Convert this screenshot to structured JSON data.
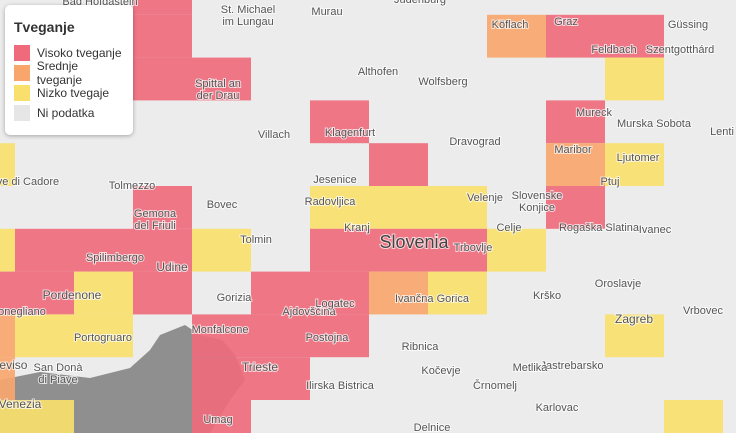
{
  "legend": {
    "title": "Tveganje",
    "items": [
      {
        "label": "Visoko tveganje",
        "color": "#ef6b7c"
      },
      {
        "label": "Srednje tveganje",
        "color": "#f8a66c"
      },
      {
        "label": "Nizko tvegaje",
        "color": "#f9e06d"
      },
      {
        "label": "Ni podatka",
        "color": "#e6e6e6"
      }
    ]
  },
  "places": [
    "Bad Hofgastein",
    "St. Michael",
    "im Lungau",
    "Murau",
    "Judenburg",
    "Köflach",
    "Graz",
    "Güssing",
    "Spittal an",
    "der Drau",
    "Althofen",
    "Wolfsberg",
    "Feldbach",
    "Szentgotthárd",
    "Villach",
    "Klagenfurt",
    "Dravograd",
    "Mureck",
    "Murska Sobota",
    "Lenti",
    "Maribor",
    "Ljutomer",
    "Pieve di Cadore",
    "Tolmezzo",
    "Jesenice",
    "Ptuj",
    "Slovenske",
    "Konjice",
    "Bovec",
    "Radovljica",
    "Velenje",
    "Gemona",
    "del Friuli",
    "Kranj",
    "Celje",
    "Rogaška Slatina",
    "Ivanec",
    "Tolmin",
    "Slovenia",
    "Trbovlje",
    "Spilimbergo",
    "Udine",
    "Pordenone",
    "Gorizia",
    "Ajdovščina",
    "Logatec",
    "Ivančna Gorica",
    "Krško",
    "Oroslavje",
    "Vrbovec",
    "Conegliano",
    "Portogruaro",
    "Monfalcone",
    "Postojna",
    "Zagreb",
    "Ribnica",
    "Treviso",
    "San Donà",
    "di Piave",
    "Trieste",
    "Kočevje",
    "Jastrebarsko",
    "Metlika",
    "Ilirska Bistrica",
    "Črnomelj",
    "Karlovac",
    "Venezia",
    "Umag",
    "Delnice"
  ]
}
